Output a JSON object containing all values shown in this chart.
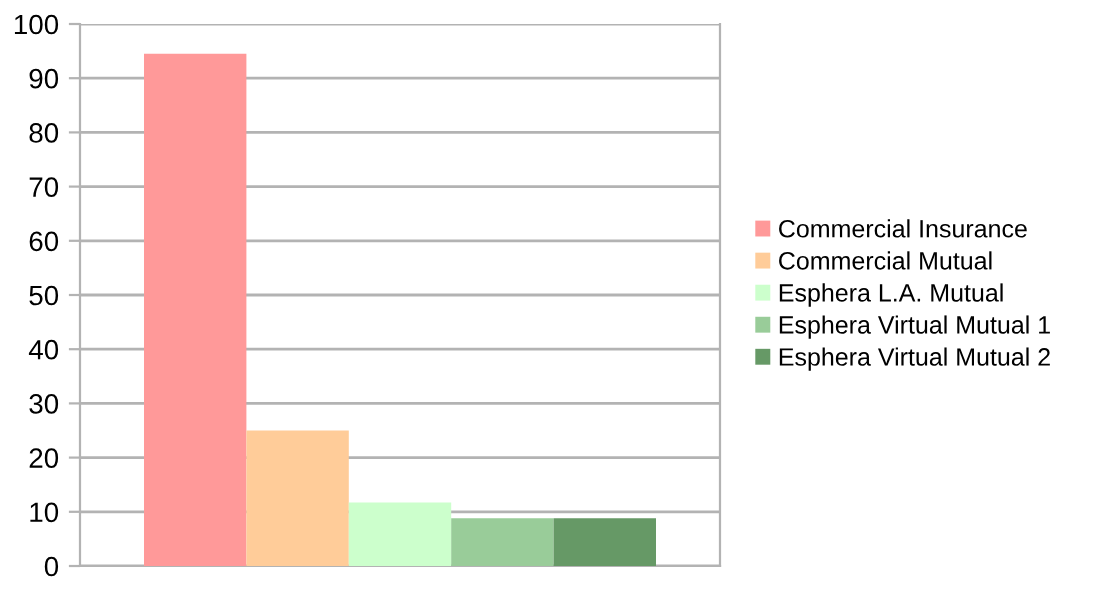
{
  "chart_data": {
    "type": "bar",
    "categories": [
      null
    ],
    "series": [
      {
        "name": "Commercial Insurance",
        "color": "#ff9999",
        "values": [
          94.5
        ]
      },
      {
        "name": "Commercial Mutual",
        "color": "#ffcc99",
        "values": [
          25
        ]
      },
      {
        "name": "Esphera L.A. Mutual",
        "color": "#ccffcc",
        "values": [
          11.7
        ]
      },
      {
        "name": "Esphera Virtual Mutual 1",
        "color": "#99cc99",
        "values": [
          8.8
        ]
      },
      {
        "name": "Esphera Virtual Mutual 2",
        "color": "#669966",
        "values": [
          8.8
        ]
      }
    ],
    "ylim": [
      0,
      100
    ],
    "yticks": [
      0,
      10,
      20,
      30,
      40,
      50,
      60,
      70,
      80,
      90,
      100
    ],
    "grid": "y",
    "legend": "right"
  }
}
